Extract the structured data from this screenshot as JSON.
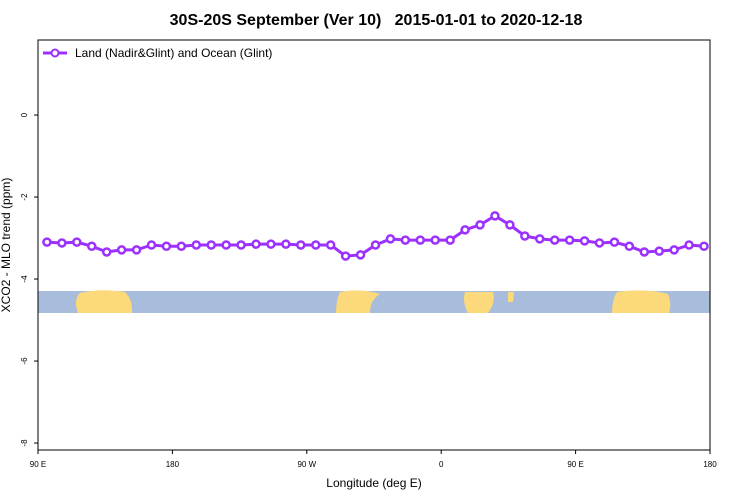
{
  "chart_data": {
    "type": "line",
    "title": "30S-20S September (Ver 10)   2015-01-01 to 2020-12-18",
    "x_label": "Longitude (deg E)",
    "y_label": "XCO2 - MLO trend (ppm)",
    "legend": "top-left",
    "x": [
      96,
      106,
      116,
      126,
      136,
      146,
      156,
      166,
      176,
      186,
      196,
      206,
      216,
      226,
      236,
      246,
      256,
      266,
      276,
      286,
      296,
      306,
      316,
      326,
      336,
      346,
      356,
      366,
      376,
      386,
      396,
      406,
      416,
      426,
      436,
      446,
      456,
      466,
      476,
      486,
      496,
      506,
      516,
      526,
      536
    ],
    "series": [
      {
        "name": "Land (Nadir&Glint) and Ocean (Glint)",
        "color": "#9b30ff",
        "values": [
          -3.1,
          -3.12,
          -3.1,
          -3.2,
          -3.34,
          -3.29,
          -3.29,
          -3.17,
          -3.2,
          -3.2,
          -3.17,
          -3.17,
          -3.17,
          -3.17,
          -3.15,
          -3.15,
          -3.15,
          -3.17,
          -3.17,
          -3.17,
          -3.44,
          -3.41,
          -3.17,
          -3.02,
          -3.05,
          -3.05,
          -3.05,
          -3.05,
          -2.8,
          -2.68,
          -2.46,
          -2.68,
          -2.95,
          -3.02,
          -3.05,
          -3.05,
          -3.07,
          -3.12,
          -3.1,
          -3.2,
          -3.34,
          -3.32,
          -3.29,
          -3.17,
          -3.2
        ]
      }
    ],
    "xlim": [
      90,
      540
    ],
    "xticks": [
      {
        "value": 90,
        "label": "90 E"
      },
      180,
      {
        "value": 270,
        "label": "90 W"
      },
      {
        "value": 360,
        "label": "0"
      },
      {
        "value": 450,
        "label": "90 E"
      },
      {
        "value": 540,
        "label": "180"
      }
    ],
    "ylim": [
      -8.17,
      1.83
    ],
    "yticks": [
      0,
      -2,
      -4,
      -6,
      -8
    ]
  }
}
